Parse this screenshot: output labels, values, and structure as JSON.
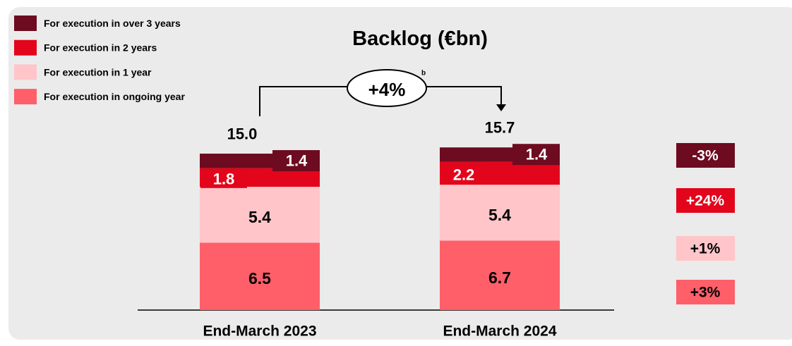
{
  "chart_data": {
    "type": "stacked_bar",
    "title": "Backlog (€bn)",
    "categories": [
      "End-March 2023",
      "End-March 2024"
    ],
    "series": [
      {
        "name": "For execution in ongoing year",
        "color": "#ff5f69",
        "values": [
          6.5,
          6.7
        ],
        "change": {
          "value": 3,
          "label": "+3%"
        }
      },
      {
        "name": "For execution in 1 year",
        "color": "#ffc5c9",
        "values": [
          5.4,
          5.4
        ],
        "change": {
          "value": 1,
          "label": "+1%"
        }
      },
      {
        "name": "For execution in 2 years",
        "color": "#e3051b",
        "values": [
          1.8,
          2.2
        ],
        "change": {
          "value": 24,
          "label": "+24%"
        }
      },
      {
        "name": "For execution in over 3 years",
        "color": "#6d0b20",
        "values": [
          1.4,
          1.4
        ],
        "change": {
          "value": -3,
          "label": "-3%"
        }
      }
    ],
    "totals": {
      "values": [
        15,
        15.7
      ],
      "value_labels": [
        "15.0",
        "15.7"
      ]
    },
    "growth": {
      "value": 4,
      "label": "+4%",
      "footnote": "b"
    }
  }
}
